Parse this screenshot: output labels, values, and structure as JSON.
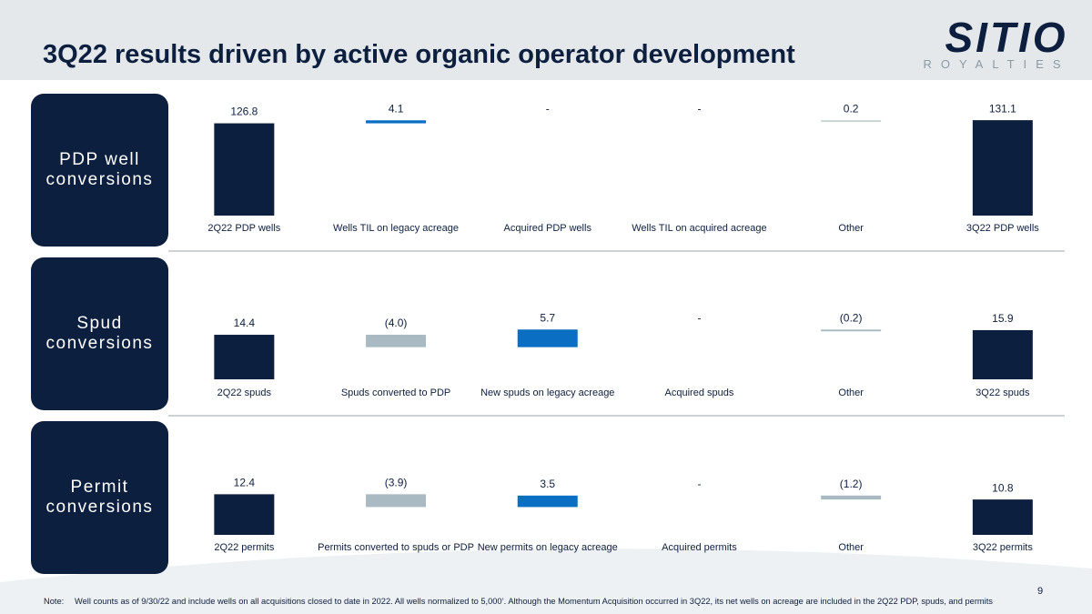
{
  "title": "3Q22 results driven by active organic operator development",
  "logo": {
    "name": "SITIO",
    "tagline": "ROYALTIES"
  },
  "page_number": "9",
  "note": {
    "label": "Note:",
    "text": "Well counts as of 9/30/22 and include wells on all acquisitions closed to date in 2022. All wells normalized to 5,000’. Although the Momentum Acquisition occurred in 3Q22, its net wells on acreage are included in the 2Q22 PDP, spuds, and permits"
  },
  "chart_data": [
    {
      "type": "waterfall",
      "title": "PDP well conversions",
      "categories": [
        "2Q22 PDP wells",
        "Wells TIL on legacy acreage",
        "Acquired PDP wells",
        "Wells TIL on acquired acreage",
        "Other",
        "3Q22 PDP wells"
      ],
      "values": [
        126.8,
        4.1,
        0,
        0,
        0.2,
        131.1
      ],
      "value_labels": [
        "126.8",
        "4.1",
        "-",
        "-",
        "0.2",
        "131.1"
      ],
      "measure": [
        "absolute",
        "relative",
        "relative",
        "relative",
        "relative",
        "total"
      ],
      "colors": [
        "#0d1f3e",
        "#0a6fc2",
        "#0a6fc2",
        "#0a6fc2",
        "#c9d4d9",
        "#0d1f3e"
      ],
      "ylim": [
        0,
        160
      ]
    },
    {
      "type": "waterfall",
      "title": "Spud conversions",
      "categories": [
        "2Q22 spuds",
        "Spuds converted to PDP",
        "New spuds on legacy acreage",
        "Acquired spuds",
        "Other",
        "3Q22 spuds"
      ],
      "values": [
        14.4,
        -4.0,
        5.7,
        0,
        -0.2,
        15.9
      ],
      "value_labels": [
        "14.4",
        "(4.0)",
        "5.7",
        "-",
        "(0.2)",
        "15.9"
      ],
      "measure": [
        "absolute",
        "relative",
        "relative",
        "relative",
        "relative",
        "total"
      ],
      "colors": [
        "#0d1f3e",
        "#a9bac3",
        "#0a6fc2",
        "#0a6fc2",
        "#a9bac3",
        "#0d1f3e"
      ],
      "ylim": [
        0,
        20
      ]
    },
    {
      "type": "waterfall",
      "title": "Permit conversions",
      "categories": [
        "2Q22 permits",
        "Permits converted to spuds or PDP",
        "New permits on legacy acreage",
        "Acquired permits",
        "Other",
        "3Q22 permits"
      ],
      "values": [
        12.4,
        -3.9,
        3.5,
        0,
        -1.2,
        10.8
      ],
      "value_labels": [
        "12.4",
        "(3.9)",
        "3.5",
        "-",
        "(1.2)",
        "10.8"
      ],
      "measure": [
        "absolute",
        "relative",
        "relative",
        "relative",
        "relative",
        "total"
      ],
      "colors": [
        "#0d1f3e",
        "#a9bac3",
        "#0a6fc2",
        "#0a6fc2",
        "#a9bac3",
        "#0d1f3e"
      ],
      "ylim": [
        0,
        20
      ]
    }
  ]
}
